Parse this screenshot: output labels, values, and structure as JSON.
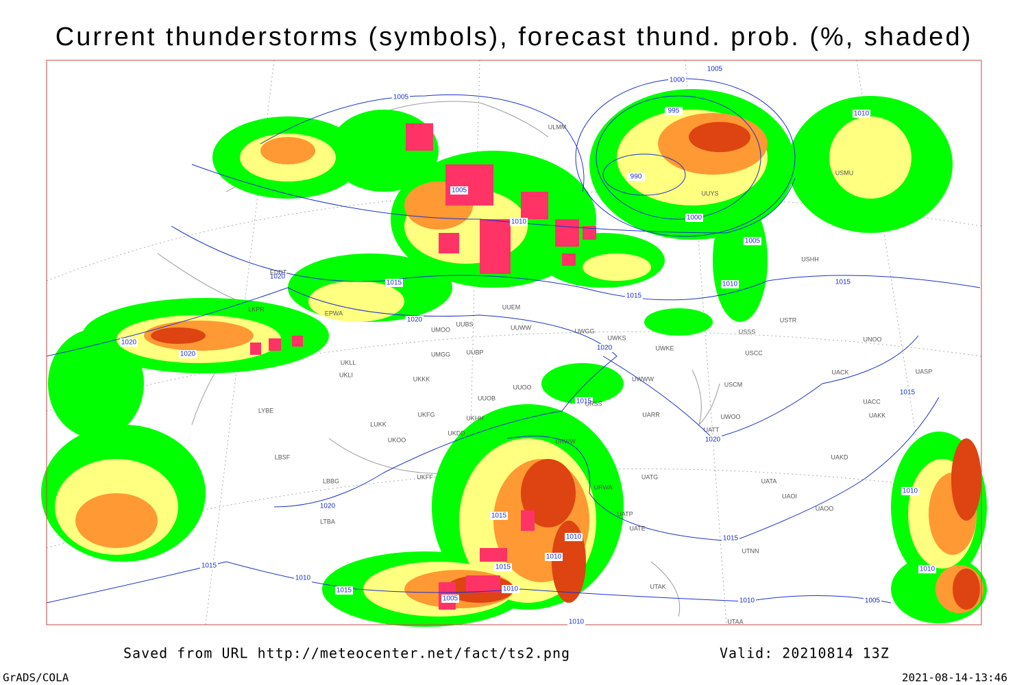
{
  "header": {
    "title": "Current thunderstorms (symbols), forecast thund. prob. (%, shaded)"
  },
  "footer": {
    "source": "Saved from URL http://meteocenter.net/fact/ts2.png",
    "valid": "Valid: 20210814 13Z",
    "credit": "GrADS/COLA",
    "timestamp": "2021-08-14-13:46"
  },
  "isobar_labels": [
    "1005",
    "1000",
    "995",
    "990",
    "1005",
    "1010",
    "1000",
    "1005",
    "1015",
    "1010",
    "1015",
    "1015",
    "1020",
    "1020",
    "1020",
    "1020",
    "1020",
    "1015",
    "1015",
    "1020",
    "1010",
    "1015",
    "1010",
    "1015",
    "1010",
    "1015",
    "1010",
    "1010",
    "1005",
    "1005",
    "1010",
    "1015",
    "1010",
    "1015",
    "1020",
    "1010",
    "1005",
    "1010"
  ],
  "stations": [
    "ULMM",
    "UUYS",
    "USMU",
    "USHH",
    "USTR",
    "USSS",
    "USCC",
    "USCM",
    "UNOO",
    "UACK",
    "UASP",
    "UACC",
    "UAKK",
    "UAKD",
    "UATA",
    "UAOI",
    "UAOO",
    "UTNN",
    "UATT",
    "UWOO",
    "UARR",
    "UATG",
    "UATE",
    "UTAK",
    "UTAA",
    "UWWW",
    "UWKE",
    "UWKS",
    "UWGG",
    "UUWW",
    "UUEM",
    "UUBS",
    "UMOO",
    "UMGG",
    "UUBP",
    "UKLL",
    "UKLI",
    "UKKK",
    "UUOO",
    "UUOB",
    "UKHH",
    "UKFG",
    "UKDD",
    "UKOO",
    "LUKK",
    "UKFF",
    "LBBG",
    "LBSF",
    "LYBE",
    "LTBA",
    "EPWA",
    "EDDT",
    "LKPR",
    "URWW",
    "URSS",
    "URWA",
    "UATP"
  ]
}
